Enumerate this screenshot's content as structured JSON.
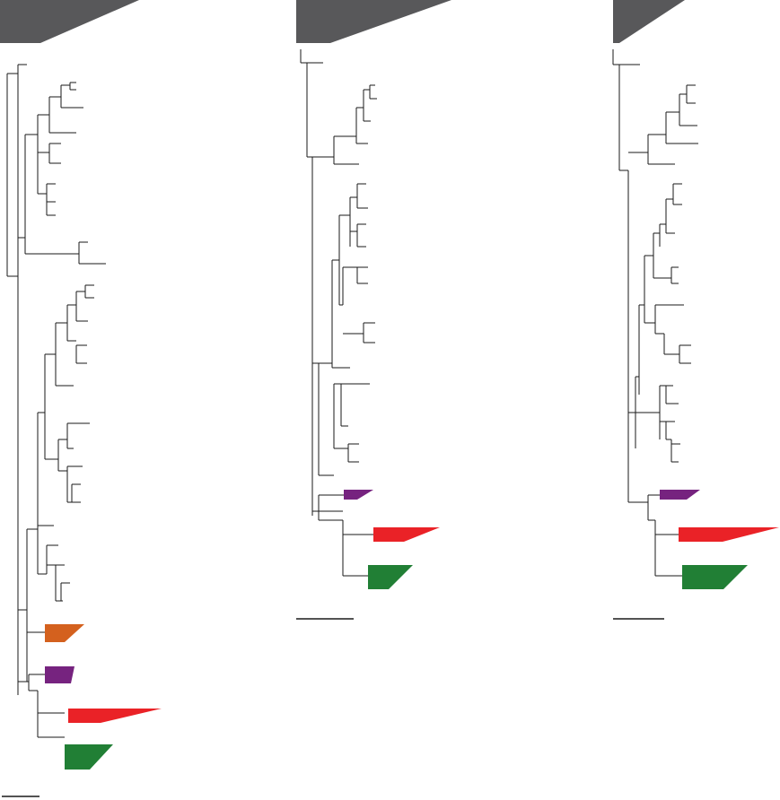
{
  "figure": {
    "panels": [
      {
        "id": "tree-a",
        "collapsed_clades": [
          "gray",
          "orange",
          "purple",
          "red",
          "green"
        ]
      },
      {
        "id": "tree-b",
        "collapsed_clades": [
          "gray",
          "purple",
          "red",
          "green"
        ]
      },
      {
        "id": "tree-c",
        "collapsed_clades": [
          "gray",
          "purple",
          "red",
          "green"
        ]
      }
    ],
    "clade_colors": {
      "gray": "#58585a",
      "orange": "#d4611e",
      "purple": "#76237f",
      "red": "#ea2227",
      "green": "#217f35"
    }
  }
}
